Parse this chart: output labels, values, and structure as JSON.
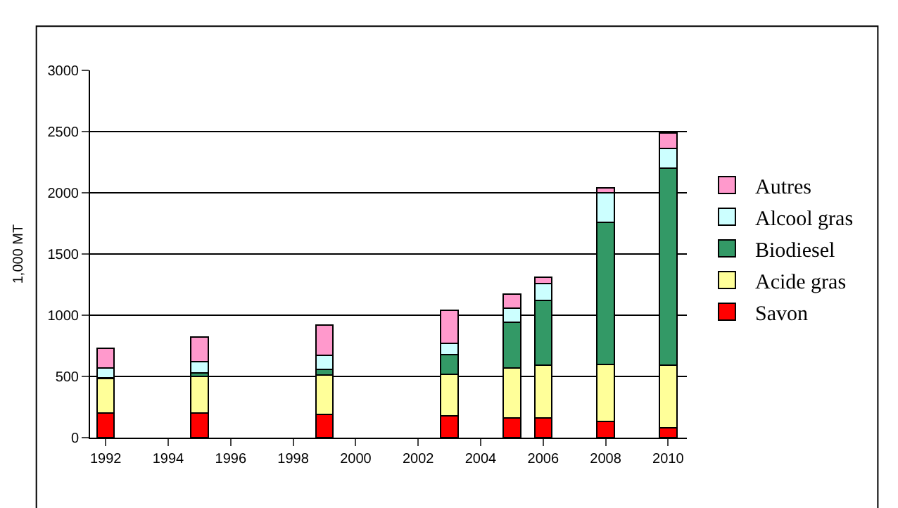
{
  "chart_data": {
    "type": "bar",
    "stacked": true,
    "ylabel": "1,000 MT",
    "x": [
      1992,
      1995,
      1999,
      2003,
      2005,
      2006,
      2008,
      2010
    ],
    "series": [
      {
        "name": "Savon",
        "color": "#ff0000",
        "values": [
          200,
          200,
          190,
          180,
          160,
          160,
          130,
          80
        ]
      },
      {
        "name": "Acide gras",
        "color": "#ffff99",
        "values": [
          280,
          300,
          320,
          340,
          410,
          430,
          470,
          510
        ]
      },
      {
        "name": "Biodiesel",
        "color": "#339966",
        "values": [
          10,
          30,
          50,
          160,
          370,
          530,
          1160,
          1610
        ]
      },
      {
        "name": "Alcool gras",
        "color": "#ccffff",
        "values": [
          80,
          90,
          110,
          90,
          120,
          140,
          240,
          160
        ]
      },
      {
        "name": "Autres",
        "color": "#ff99cc",
        "values": [
          160,
          200,
          250,
          270,
          110,
          50,
          40,
          130
        ]
      }
    ],
    "xlim": [
      1991.5,
      2010.6
    ],
    "xticks": [
      1992,
      1994,
      1996,
      1998,
      2000,
      2002,
      2004,
      2006,
      2008,
      2010
    ],
    "ylim": [
      0,
      3000
    ],
    "yticks": [
      0,
      500,
      1000,
      1500,
      2000,
      2500,
      3000
    ],
    "grid": "y",
    "legend": "right"
  }
}
